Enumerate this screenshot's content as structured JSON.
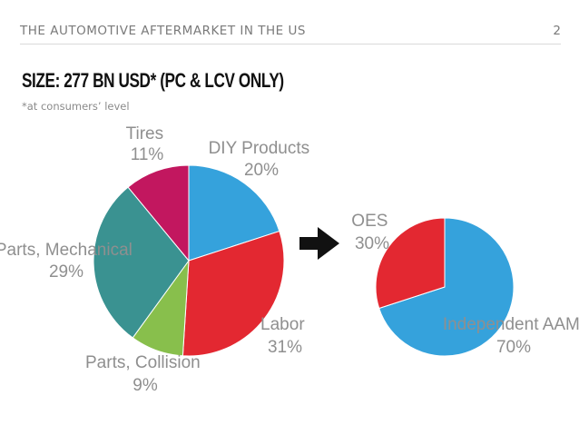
{
  "header": {
    "title": "THE AUTOMOTIVE AFTERMARKET IN THE US",
    "page_number": "2"
  },
  "slide": {
    "title": "SIZE: 277 BN USD* (PC & LCV ONLY)",
    "subtitle": "*at consumers’ level"
  },
  "chart_data": [
    {
      "type": "pie",
      "slices": [
        {
          "label": "DIY Products",
          "pct_text": "20%",
          "value": 20,
          "color": "#35a2dc"
        },
        {
          "label": "Labor",
          "pct_text": "31%",
          "value": 31,
          "color": "#e32831"
        },
        {
          "label": "Parts, Collision",
          "pct_text": "9%",
          "value": 9,
          "color": "#88bf4c"
        },
        {
          "label": "Parts, Mechanical",
          "pct_text": "29%",
          "value": 29,
          "color": "#3a9291"
        },
        {
          "label": "Tires",
          "pct_text": "11%",
          "value": 11,
          "color": "#c2175f"
        }
      ]
    },
    {
      "type": "pie",
      "slices": [
        {
          "label": "Independent AAM",
          "pct_text": "70%",
          "value": 70,
          "color": "#35a2dc"
        },
        {
          "label": "OES",
          "pct_text": "30%",
          "value": 30,
          "color": "#e32831"
        }
      ]
    }
  ],
  "arrow_icon": "right-arrow-icon"
}
